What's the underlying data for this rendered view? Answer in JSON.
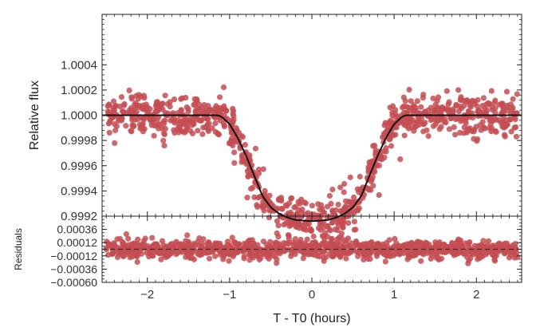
{
  "chart_data": [
    {
      "type": "scatter",
      "panel": "top",
      "xlabel": "T - T0 (hours)",
      "ylabel": "Relative flux",
      "xlim": [
        -2.55,
        2.55
      ],
      "ylim": [
        0.9992,
        1.0008
      ],
      "yticks": [
        0.9992,
        0.9994,
        0.9996,
        0.9998,
        1.0,
        1.0002,
        1.0004
      ],
      "ytick_labels": [
        "0.9992",
        "0.9994",
        "0.9996",
        "0.9998",
        "1.0000",
        "1.0002",
        "1.0004"
      ],
      "xticks": [
        -2,
        -1,
        0,
        1,
        2
      ],
      "xtick_labels": [
        "−2",
        "−1",
        "0",
        "1",
        "2"
      ],
      "grid": false,
      "point_color": "#c44e52",
      "model_color": "#111111",
      "series": [
        {
          "kind": "points",
          "count": 1000,
          "x_range": [
            -2.5,
            2.5
          ],
          "baseline": 1.0,
          "scatter_sigma": 8e-05
        },
        {
          "kind": "model",
          "x": [
            -2.55,
            -1.15,
            -1.1,
            -1.0,
            -0.9,
            -0.8,
            -0.7,
            -0.6,
            -0.5,
            -0.4,
            -0.3,
            -0.2,
            0.0,
            0.2,
            0.3,
            0.4,
            0.5,
            0.6,
            0.7,
            0.8,
            0.9,
            1.0,
            1.1,
            1.15,
            2.55
          ],
          "y": [
            1.0,
            1.0,
            0.99999,
            0.99993,
            0.99982,
            0.99968,
            0.99952,
            0.99936,
            0.99927,
            0.99922,
            0.99919,
            0.99917,
            0.99916,
            0.99917,
            0.99919,
            0.99922,
            0.99927,
            0.99936,
            0.99952,
            0.99968,
            0.99982,
            0.99993,
            0.99999,
            1.0,
            1.0
          ]
        }
      ]
    },
    {
      "type": "scatter",
      "panel": "bottom",
      "xlabel": "T - T0 (hours)",
      "ylabel": "Residuals",
      "xlim": [
        -2.55,
        2.55
      ],
      "ylim": [
        -0.0006,
        0.0006
      ],
      "yticks": [
        -0.0006,
        -0.00036,
        -0.00012,
        0.00012,
        0.00036
      ],
      "ytick_labels": [
        "−0.00060",
        "−0.00036",
        "−0.00012",
        "0.00012",
        "0.00036"
      ],
      "xticks": [
        -2,
        -1,
        0,
        1,
        2
      ],
      "xtick_labels": [
        "−2",
        "−1",
        "0",
        "1",
        "2"
      ],
      "zero_line": 0.0,
      "point_color": "#c44e52",
      "series": [
        {
          "kind": "points",
          "count": 1000,
          "x_range": [
            -2.5,
            2.5
          ],
          "scatter_sigma": 8e-05
        }
      ]
    }
  ]
}
